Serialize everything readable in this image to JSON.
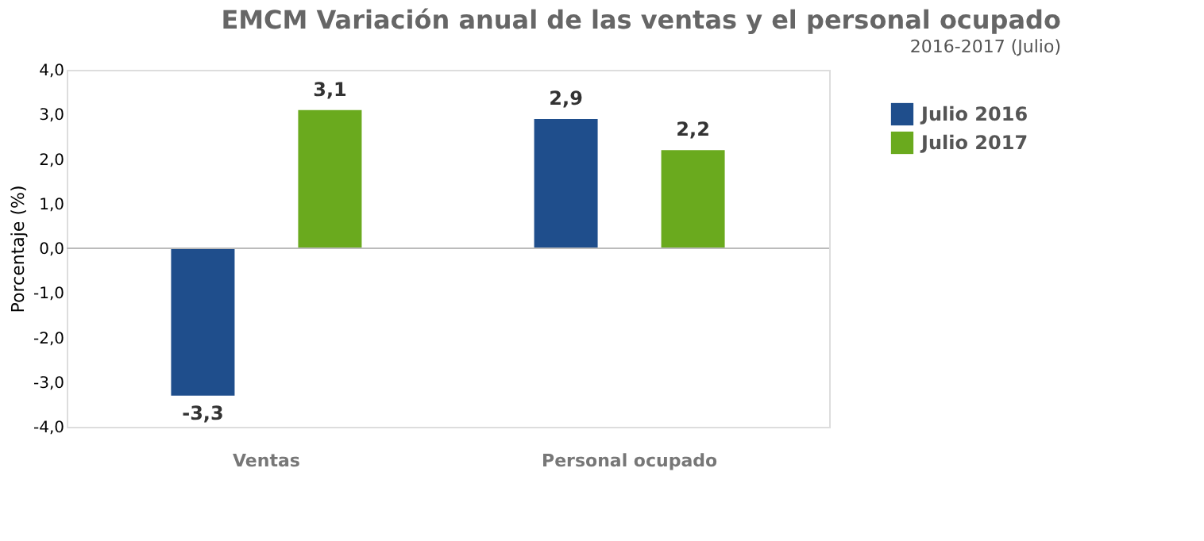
{
  "chart_data": {
    "type": "bar",
    "title": "Variación anual de las ventas y el personal ocupado",
    "subtitle": "2016-2017 (Julio)",
    "ylabel": "Porcentaje (%)",
    "annotations": [
      "EMCM"
    ],
    "categories": [
      "Ventas",
      "Personal ocupado"
    ],
    "series": [
      {
        "name": "Julio 2016",
        "color": "#1f4e8c",
        "values": [
          -3.3,
          2.9
        ],
        "value_labels": [
          "-3,3",
          "2,9"
        ]
      },
      {
        "name": "Julio 2017",
        "color": "#6aaa1e",
        "values": [
          3.1,
          2.2
        ],
        "value_labels": [
          "3,1",
          "2,2"
        ]
      }
    ],
    "ylim": [
      -4,
      4
    ],
    "yticks": [
      {
        "value": -4,
        "label": "-4,0"
      },
      {
        "value": -3,
        "label": "-3,0"
      },
      {
        "value": -2,
        "label": "-2,0"
      },
      {
        "value": -1,
        "label": "-1,0"
      },
      {
        "value": 0,
        "label": "0,0"
      },
      {
        "value": 1,
        "label": "1,0"
      },
      {
        "value": 2,
        "label": "2,0"
      },
      {
        "value": 3,
        "label": "3,0"
      },
      {
        "value": 4,
        "label": "4,0"
      }
    ],
    "grid": false,
    "legend": "right",
    "ref_lines": [
      {
        "axis": "y",
        "value": 0,
        "color": "#bbbbbb"
      }
    ]
  }
}
